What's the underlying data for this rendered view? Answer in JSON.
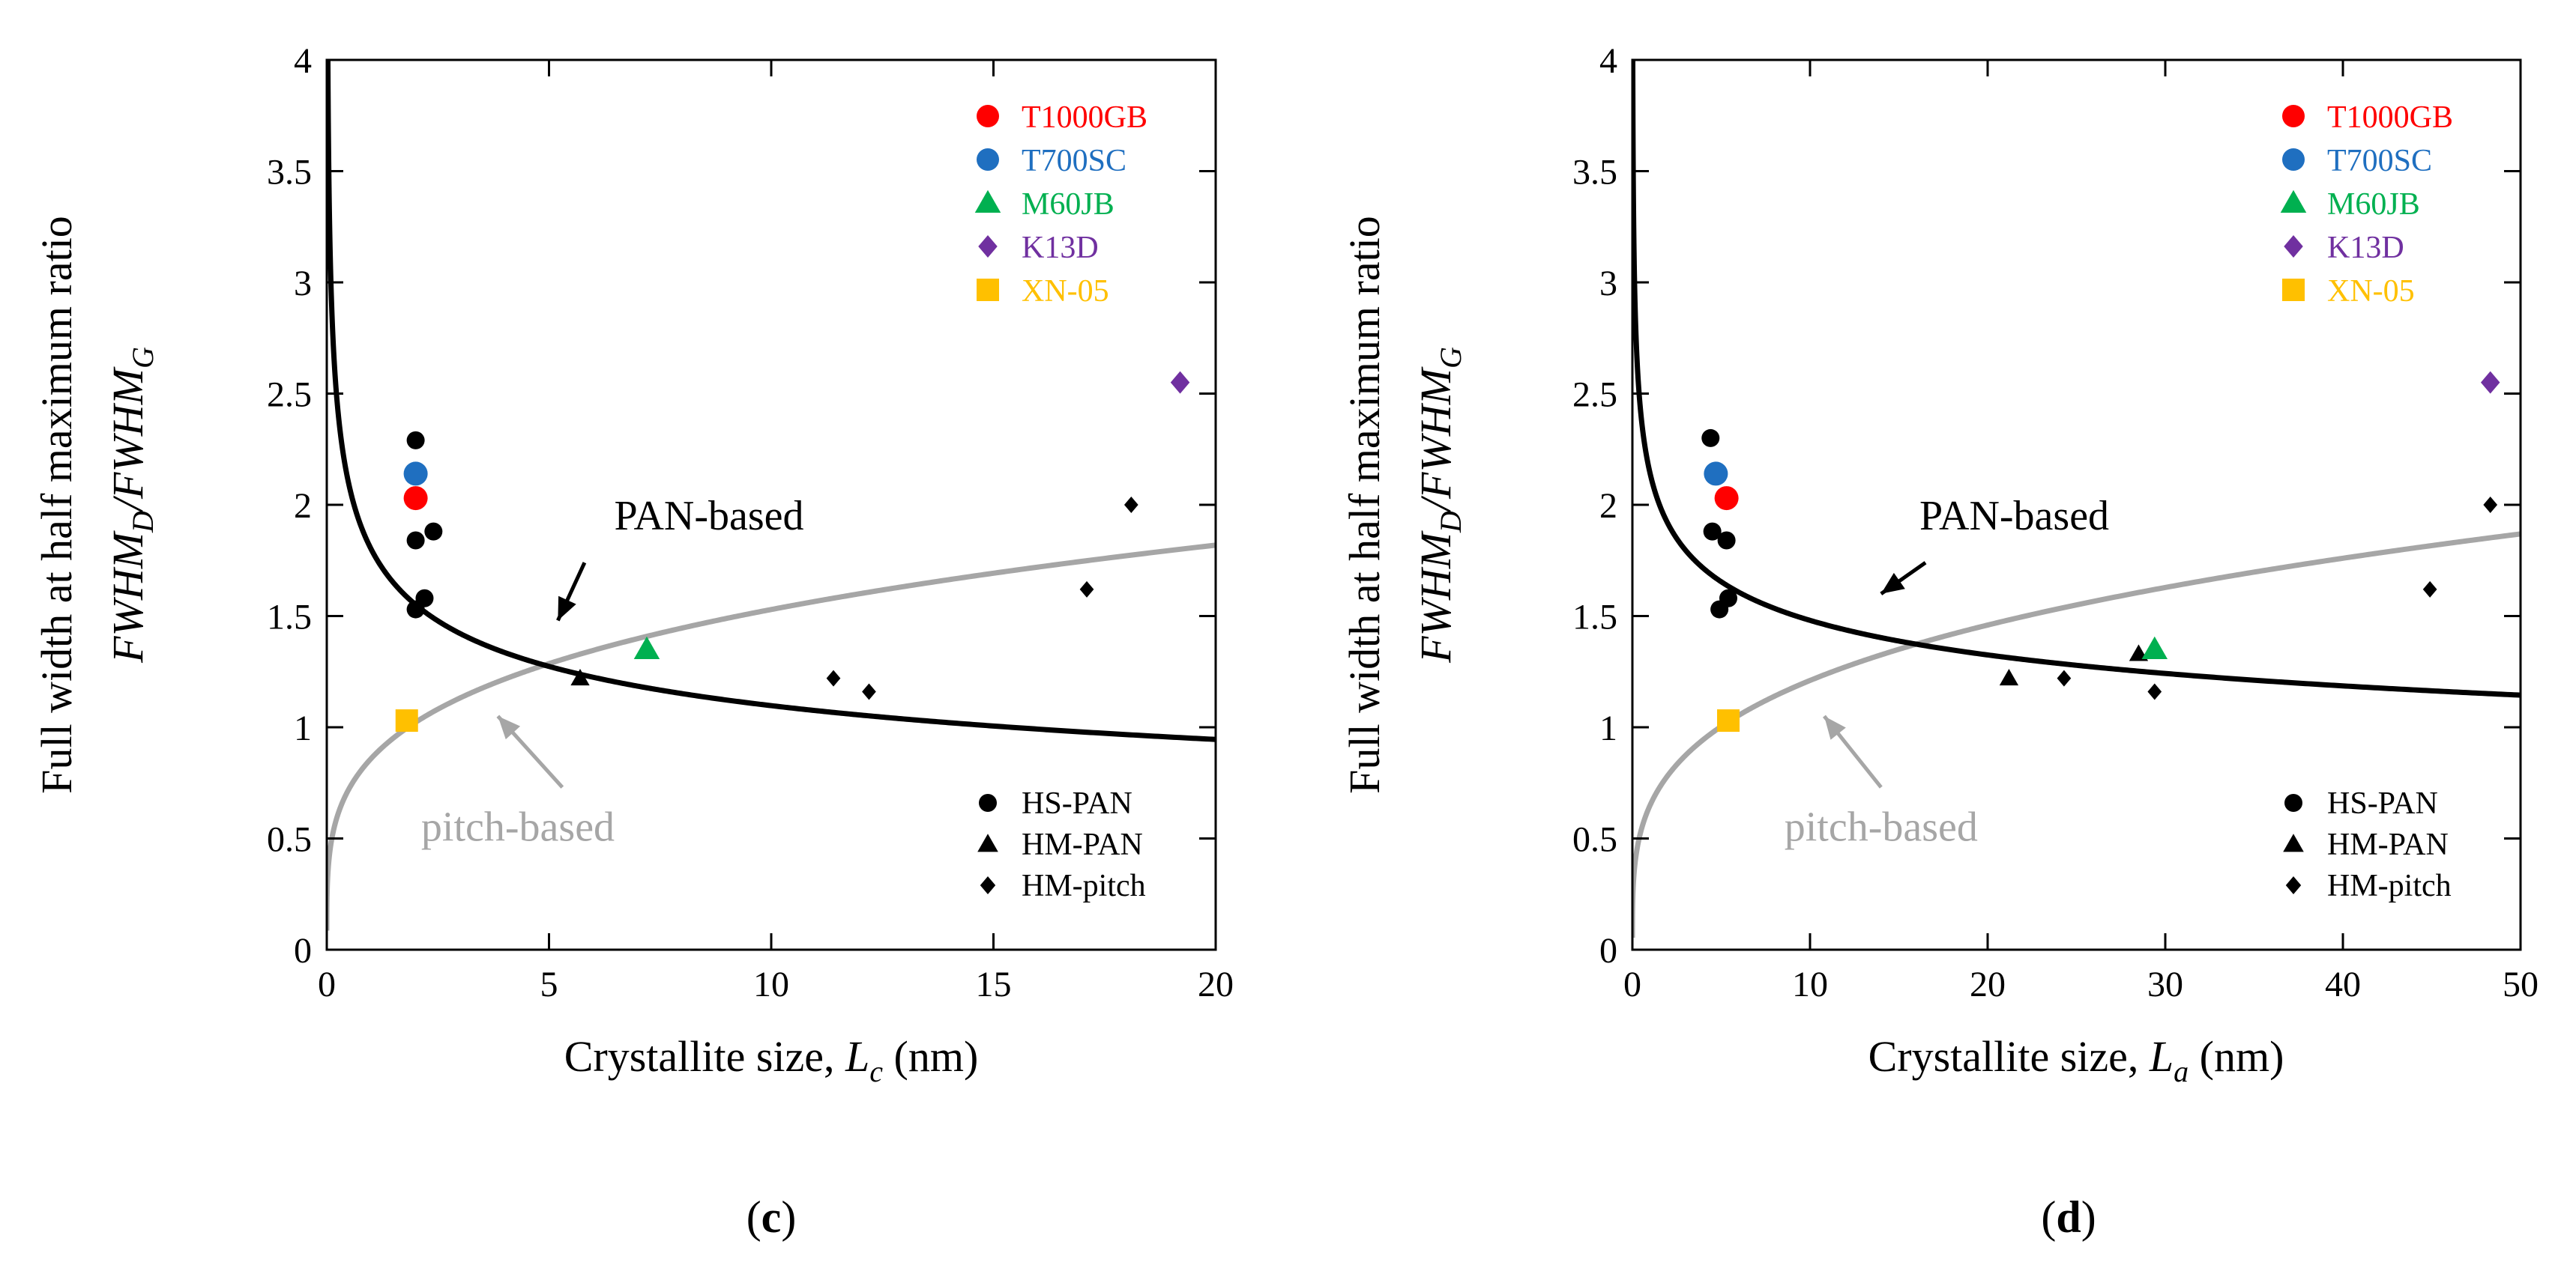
{
  "chart_data": [
    {
      "id": "c",
      "type": "scatter",
      "panel_label": "c",
      "ylabel_line1": "Full width at half maximum ratio",
      "ylabel_line2": {
        "parts": [
          "FWHM",
          "D",
          "/FWHM",
          "G"
        ]
      },
      "xlabel": {
        "prefix": "Crystallite size, ",
        "var": "L",
        "sub": "c",
        "suffix": " (nm)"
      },
      "xlim": [
        0,
        20
      ],
      "ylim": [
        0,
        4
      ],
      "xticks": [
        "0",
        "5",
        "10",
        "15",
        "20"
      ],
      "xtick_values": [
        0,
        5,
        10,
        15,
        20
      ],
      "yticks": [
        "0",
        "0.5",
        "1",
        "1.5",
        "2",
        "2.5",
        "3",
        "3.5",
        "4"
      ],
      "ytick_values": [
        0,
        0.5,
        1,
        1.5,
        2,
        2.5,
        3,
        3.5,
        4
      ],
      "curves": {
        "pan": {
          "label": "PAN-based",
          "a": 1.8,
          "b": -0.215,
          "color": "#000000"
        },
        "pitch": {
          "label": "pitch-based",
          "a": 0.86,
          "b": 0.25,
          "color": "#a6a6a6"
        }
      },
      "annotations": [
        {
          "text": "PAN-based",
          "color": "#000000",
          "text_at": [
            8.6,
            1.95
          ],
          "arrow_from": [
            5.8,
            1.74
          ],
          "arrow_to": [
            5.2,
            1.48
          ]
        },
        {
          "text": "pitch-based",
          "color": "#a6a6a6",
          "text_at": [
            4.3,
            0.55
          ],
          "arrow_from": [
            5.3,
            0.73
          ],
          "arrow_to": [
            3.85,
            1.05
          ]
        }
      ],
      "series": [
        {
          "name": "HS-PAN",
          "marker": "circle",
          "color": "#000000",
          "points": [
            [
              2.0,
              2.29
            ],
            [
              2.0,
              1.84
            ],
            [
              2.4,
              1.88
            ],
            [
              2.2,
              1.58
            ],
            [
              2.0,
              1.53
            ]
          ]
        },
        {
          "name": "HM-PAN",
          "marker": "triangle",
          "color": "#000000",
          "points": [
            [
              5.7,
              1.22
            ]
          ]
        },
        {
          "name": "HM-pitch",
          "marker": "diamond",
          "color": "#000000",
          "points": [
            [
              11.4,
              1.22
            ],
            [
              12.2,
              1.16
            ],
            [
              17.1,
              1.62
            ],
            [
              18.1,
              2.0
            ]
          ]
        },
        {
          "name": "T1000GB",
          "marker": "circle",
          "color": "#ff0000",
          "points": [
            [
              2.0,
              2.03
            ]
          ]
        },
        {
          "name": "T700SC",
          "marker": "circle",
          "color": "#1f6fc0",
          "points": [
            [
              2.0,
              2.14
            ]
          ]
        },
        {
          "name": "M60JB",
          "marker": "triangle",
          "color": "#00b050",
          "points": [
            [
              7.2,
              1.35
            ]
          ]
        },
        {
          "name": "K13D",
          "marker": "diamond",
          "color": "#7030a0",
          "points": [
            [
              19.2,
              2.55
            ]
          ]
        },
        {
          "name": "XN-05",
          "marker": "square",
          "color": "#ffc000",
          "points": [
            [
              1.8,
              1.03
            ]
          ]
        }
      ],
      "legend_top": [
        {
          "label": "T1000GB",
          "marker": "circle",
          "color": "#ff0000"
        },
        {
          "label": "T700SC",
          "marker": "circle",
          "color": "#1f6fc0"
        },
        {
          "label": "M60JB",
          "marker": "triangle",
          "color": "#00b050"
        },
        {
          "label": "K13D",
          "marker": "diamond",
          "color": "#7030a0"
        },
        {
          "label": "XN-05",
          "marker": "square",
          "color": "#ffc000"
        }
      ],
      "legend_bottom": [
        {
          "label": "HS-PAN",
          "marker": "circle",
          "color": "#000000"
        },
        {
          "label": "HM-PAN",
          "marker": "triangle",
          "color": "#000000"
        },
        {
          "label": "HM-pitch",
          "marker": "diamond",
          "color": "#000000"
        }
      ],
      "legend_placement": "top-right and bottom-right"
    },
    {
      "id": "d",
      "type": "scatter",
      "panel_label": "d",
      "ylabel_line1": "Full width at half maximum ratio",
      "ylabel_line2": {
        "parts": [
          "FWHM",
          "D",
          "/FWHM",
          "G"
        ]
      },
      "xlabel": {
        "prefix": "Crystallite size, ",
        "var": "L",
        "sub": "a",
        "suffix": " (nm)"
      },
      "xlim": [
        0,
        50
      ],
      "ylim": [
        0,
        4
      ],
      "xticks": [
        "0",
        "10",
        "20",
        "30",
        "40",
        "50"
      ],
      "xtick_values": [
        0,
        10,
        20,
        30,
        40,
        50
      ],
      "yticks": [
        "0",
        "0.5",
        "1",
        "1.5",
        "2",
        "2.5",
        "3",
        "3.5",
        "4"
      ],
      "ytick_values": [
        0,
        0.5,
        1,
        1.5,
        2,
        2.5,
        3,
        3.5,
        4
      ],
      "curves": {
        "pan": {
          "label": "PAN-based",
          "a": 2.14,
          "b": -0.16,
          "color": "#000000"
        },
        "pitch": {
          "label": "pitch-based",
          "a": 0.65,
          "b": 0.27,
          "color": "#a6a6a6"
        }
      },
      "annotations": [
        {
          "text": "PAN-based",
          "color": "#000000",
          "text_at": [
            21.5,
            1.95
          ],
          "arrow_from": [
            16.5,
            1.74
          ],
          "arrow_to": [
            14.0,
            1.6
          ]
        },
        {
          "text": "pitch-based",
          "color": "#a6a6a6",
          "text_at": [
            14.0,
            0.55
          ],
          "arrow_from": [
            14.0,
            0.73
          ],
          "arrow_to": [
            10.8,
            1.05
          ]
        }
      ],
      "series": [
        {
          "name": "HS-PAN",
          "marker": "circle",
          "color": "#000000",
          "points": [
            [
              4.4,
              2.3
            ],
            [
              4.5,
              1.88
            ],
            [
              5.3,
              1.84
            ],
            [
              5.4,
              1.58
            ],
            [
              4.9,
              1.53
            ]
          ]
        },
        {
          "name": "HM-PAN",
          "marker": "triangle",
          "color": "#000000",
          "points": [
            [
              21.2,
              1.22
            ],
            [
              28.5,
              1.33
            ]
          ]
        },
        {
          "name": "HM-pitch",
          "marker": "diamond",
          "color": "#000000",
          "points": [
            [
              24.3,
              1.22
            ],
            [
              29.4,
              1.16
            ],
            [
              44.9,
              1.62
            ],
            [
              48.3,
              2.0
            ]
          ]
        },
        {
          "name": "T1000GB",
          "marker": "circle",
          "color": "#ff0000",
          "points": [
            [
              5.3,
              2.03
            ]
          ]
        },
        {
          "name": "T700SC",
          "marker": "circle",
          "color": "#1f6fc0",
          "points": [
            [
              4.7,
              2.14
            ]
          ]
        },
        {
          "name": "M60JB",
          "marker": "triangle",
          "color": "#00b050",
          "points": [
            [
              29.4,
              1.35
            ]
          ]
        },
        {
          "name": "K13D",
          "marker": "diamond",
          "color": "#7030a0",
          "points": [
            [
              48.3,
              2.55
            ]
          ]
        },
        {
          "name": "XN-05",
          "marker": "square",
          "color": "#ffc000",
          "points": [
            [
              5.4,
              1.03
            ]
          ]
        }
      ],
      "legend_top": [
        {
          "label": "T1000GB",
          "marker": "circle",
          "color": "#ff0000"
        },
        {
          "label": "T700SC",
          "marker": "circle",
          "color": "#1f6fc0"
        },
        {
          "label": "M60JB",
          "marker": "triangle",
          "color": "#00b050"
        },
        {
          "label": "K13D",
          "marker": "diamond",
          "color": "#7030a0"
        },
        {
          "label": "XN-05",
          "marker": "square",
          "color": "#ffc000"
        }
      ],
      "legend_bottom": [
        {
          "label": "HS-PAN",
          "marker": "circle",
          "color": "#000000"
        },
        {
          "label": "HM-PAN",
          "marker": "triangle",
          "color": "#000000"
        },
        {
          "label": "HM-pitch",
          "marker": "diamond",
          "color": "#000000"
        }
      ],
      "legend_placement": "top-right and bottom-right"
    }
  ]
}
